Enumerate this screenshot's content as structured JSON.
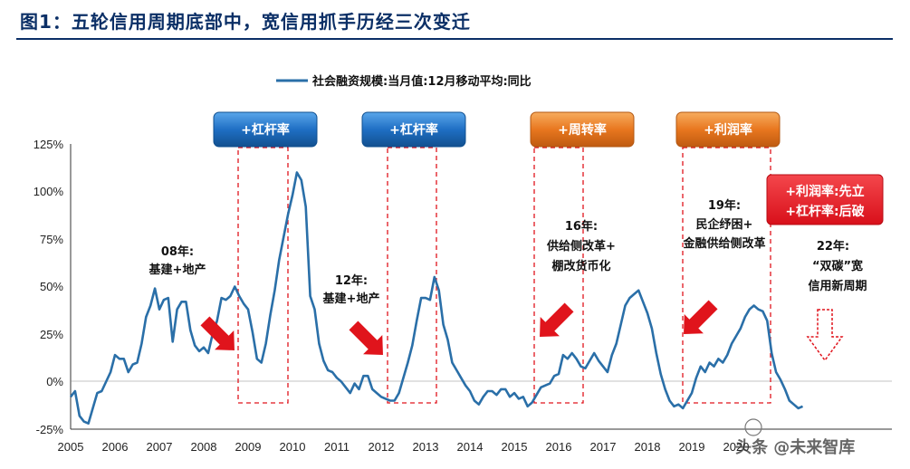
{
  "title": "图1：五轮信用周期底部中，宽信用抓手历经三次变迁",
  "watermark": "头条 @未来智库",
  "badges": [
    {
      "label": "+杠杆率",
      "color": "blue"
    },
    {
      "label": "+杠杆率",
      "color": "blue"
    },
    {
      "label": "+周转率",
      "color": "orange"
    },
    {
      "label": "+利润率",
      "color": "orange"
    },
    {
      "label": "+利润率:先立\n+杠杆率:后破",
      "color": "red"
    }
  ],
  "annotations": [
    {
      "lines": [
        "08年:",
        "基建+地产"
      ]
    },
    {
      "lines": [
        "12年:",
        "基建+地产"
      ]
    },
    {
      "lines": [
        "16年:",
        "供给侧改革+",
        "棚改货币化"
      ]
    },
    {
      "lines": [
        "19年:",
        "民企纾困+",
        "金融供给侧改革"
      ]
    },
    {
      "lines": [
        "22年:",
        "“双碳”宽",
        "信用新周期"
      ]
    }
  ],
  "chart_data": {
    "type": "line",
    "title": "",
    "xlabel": "",
    "ylabel": "",
    "xlim": [
      2005,
      2022.6
    ],
    "ylim": [
      -0.25,
      1.25
    ],
    "x_ticks": [
      "2005",
      "2006",
      "2007",
      "2008",
      "2009",
      "2010",
      "2011",
      "2012",
      "2013",
      "2014",
      "2015",
      "2016",
      "2017",
      "2018",
      "2019",
      "2020"
    ],
    "y_ticks": [
      "-25%",
      "0%",
      "25%",
      "50%",
      "75%",
      "100%",
      "125%"
    ],
    "y_tick_values": [
      -0.25,
      0,
      0.25,
      0.5,
      0.75,
      1.0,
      1.25
    ],
    "legend": {
      "position": "top-center"
    },
    "grid": false,
    "series": [
      {
        "name": "社会融资规模:当月值:12月移动平均:同比",
        "color": "#2a6fa8",
        "points": [
          [
            2005.0,
            -0.08
          ],
          [
            2005.1,
            -0.05
          ],
          [
            2005.2,
            -0.18
          ],
          [
            2005.3,
            -0.21
          ],
          [
            2005.4,
            -0.22
          ],
          [
            2005.5,
            -0.14
          ],
          [
            2005.6,
            -0.06
          ],
          [
            2005.7,
            -0.05
          ],
          [
            2005.8,
            0.0
          ],
          [
            2005.9,
            0.05
          ],
          [
            2006.0,
            0.14
          ],
          [
            2006.1,
            0.12
          ],
          [
            2006.2,
            0.12
          ],
          [
            2006.3,
            0.05
          ],
          [
            2006.4,
            0.09
          ],
          [
            2006.5,
            0.1
          ],
          [
            2006.6,
            0.2
          ],
          [
            2006.7,
            0.34
          ],
          [
            2006.8,
            0.4
          ],
          [
            2006.9,
            0.49
          ],
          [
            2007.0,
            0.38
          ],
          [
            2007.1,
            0.43
          ],
          [
            2007.2,
            0.44
          ],
          [
            2007.3,
            0.21
          ],
          [
            2007.4,
            0.38
          ],
          [
            2007.5,
            0.42
          ],
          [
            2007.6,
            0.42
          ],
          [
            2007.7,
            0.27
          ],
          [
            2007.8,
            0.19
          ],
          [
            2007.9,
            0.16
          ],
          [
            2008.0,
            0.18
          ],
          [
            2008.1,
            0.15
          ],
          [
            2008.2,
            0.25
          ],
          [
            2008.3,
            0.32
          ],
          [
            2008.4,
            0.44
          ],
          [
            2008.5,
            0.43
          ],
          [
            2008.6,
            0.45
          ],
          [
            2008.7,
            0.5
          ],
          [
            2008.8,
            0.45
          ],
          [
            2008.9,
            0.41
          ],
          [
            2009.0,
            0.38
          ],
          [
            2009.1,
            0.26
          ],
          [
            2009.2,
            0.12
          ],
          [
            2009.3,
            0.1
          ],
          [
            2009.4,
            0.2
          ],
          [
            2009.5,
            0.35
          ],
          [
            2009.6,
            0.48
          ],
          [
            2009.7,
            0.64
          ],
          [
            2009.8,
            0.76
          ],
          [
            2009.9,
            0.88
          ],
          [
            2010.0,
            0.98
          ],
          [
            2010.1,
            1.1
          ],
          [
            2010.2,
            1.06
          ],
          [
            2010.3,
            0.92
          ],
          [
            2010.4,
            0.45
          ],
          [
            2010.5,
            0.38
          ],
          [
            2010.6,
            0.2
          ],
          [
            2010.7,
            0.11
          ],
          [
            2010.8,
            0.06
          ],
          [
            2010.9,
            0.05
          ],
          [
            2011.0,
            0.02
          ],
          [
            2011.1,
            0.0
          ],
          [
            2011.2,
            -0.03
          ],
          [
            2011.3,
            -0.06
          ],
          [
            2011.4,
            -0.01
          ],
          [
            2011.5,
            -0.04
          ],
          [
            2011.6,
            0.03
          ],
          [
            2011.7,
            0.03
          ],
          [
            2011.8,
            -0.04
          ],
          [
            2011.9,
            -0.06
          ],
          [
            2012.0,
            -0.08
          ],
          [
            2012.1,
            -0.09
          ],
          [
            2012.2,
            -0.1
          ],
          [
            2012.3,
            -0.1
          ],
          [
            2012.4,
            -0.06
          ],
          [
            2012.5,
            0.02
          ],
          [
            2012.6,
            0.1
          ],
          [
            2012.7,
            0.19
          ],
          [
            2012.8,
            0.32
          ],
          [
            2012.9,
            0.44
          ],
          [
            2013.0,
            0.44
          ],
          [
            2013.1,
            0.43
          ],
          [
            2013.2,
            0.55
          ],
          [
            2013.3,
            0.48
          ],
          [
            2013.4,
            0.3
          ],
          [
            2013.5,
            0.22
          ],
          [
            2013.6,
            0.1
          ],
          [
            2013.7,
            0.06
          ],
          [
            2013.8,
            0.02
          ],
          [
            2013.9,
            -0.02
          ],
          [
            2014.0,
            -0.05
          ],
          [
            2014.1,
            -0.1
          ],
          [
            2014.2,
            -0.12
          ],
          [
            2014.3,
            -0.08
          ],
          [
            2014.4,
            -0.05
          ],
          [
            2014.5,
            -0.05
          ],
          [
            2014.6,
            -0.07
          ],
          [
            2014.7,
            -0.04
          ],
          [
            2014.8,
            -0.04
          ],
          [
            2014.9,
            -0.08
          ],
          [
            2015.0,
            -0.06
          ],
          [
            2015.1,
            -0.09
          ],
          [
            2015.2,
            -0.08
          ],
          [
            2015.3,
            -0.13
          ],
          [
            2015.4,
            -0.11
          ],
          [
            2015.5,
            -0.07
          ],
          [
            2015.6,
            -0.03
          ],
          [
            2015.7,
            -0.02
          ],
          [
            2015.8,
            -0.01
          ],
          [
            2015.9,
            0.03
          ],
          [
            2016.0,
            0.04
          ],
          [
            2016.1,
            0.14
          ],
          [
            2016.2,
            0.12
          ],
          [
            2016.3,
            0.15
          ],
          [
            2016.4,
            0.12
          ],
          [
            2016.5,
            0.08
          ],
          [
            2016.6,
            0.07
          ],
          [
            2016.7,
            0.11
          ],
          [
            2016.8,
            0.15
          ],
          [
            2016.9,
            0.11
          ],
          [
            2017.0,
            0.08
          ],
          [
            2017.1,
            0.05
          ],
          [
            2017.2,
            0.14
          ],
          [
            2017.3,
            0.2
          ],
          [
            2017.4,
            0.3
          ],
          [
            2017.5,
            0.4
          ],
          [
            2017.6,
            0.44
          ],
          [
            2017.7,
            0.46
          ],
          [
            2017.8,
            0.48
          ],
          [
            2017.9,
            0.42
          ],
          [
            2018.0,
            0.36
          ],
          [
            2018.1,
            0.28
          ],
          [
            2018.2,
            0.15
          ],
          [
            2018.3,
            0.04
          ],
          [
            2018.4,
            -0.04
          ],
          [
            2018.5,
            -0.1
          ],
          [
            2018.6,
            -0.13
          ],
          [
            2018.7,
            -0.12
          ],
          [
            2018.8,
            -0.14
          ],
          [
            2018.9,
            -0.1
          ],
          [
            2019.0,
            -0.06
          ],
          [
            2019.1,
            0.02
          ],
          [
            2019.2,
            0.08
          ],
          [
            2019.3,
            0.05
          ],
          [
            2019.4,
            0.1
          ],
          [
            2019.5,
            0.08
          ],
          [
            2019.6,
            0.12
          ],
          [
            2019.7,
            0.1
          ],
          [
            2019.8,
            0.14
          ],
          [
            2019.9,
            0.2
          ],
          [
            2020.0,
            0.24
          ],
          [
            2020.1,
            0.28
          ],
          [
            2020.2,
            0.34
          ],
          [
            2020.3,
            0.38
          ],
          [
            2020.4,
            0.4
          ],
          [
            2020.5,
            0.38
          ],
          [
            2020.6,
            0.37
          ],
          [
            2020.7,
            0.32
          ],
          [
            2020.8,
            0.15
          ],
          [
            2020.9,
            0.05
          ],
          [
            2021.0,
            0.01
          ],
          [
            2021.1,
            -0.04
          ],
          [
            2021.2,
            -0.1
          ],
          [
            2021.3,
            -0.12
          ],
          [
            2021.4,
            -0.14
          ],
          [
            2021.5,
            -0.13
          ]
        ]
      }
    ]
  },
  "colors": {
    "title": "#0b2f66",
    "line": "#2a6fa8",
    "badge_blue": "#1f6fc4",
    "badge_orange": "#e8771f",
    "badge_red": "#e0141c",
    "dashed_box": "#e0141c",
    "arrow": "#e0141c"
  }
}
